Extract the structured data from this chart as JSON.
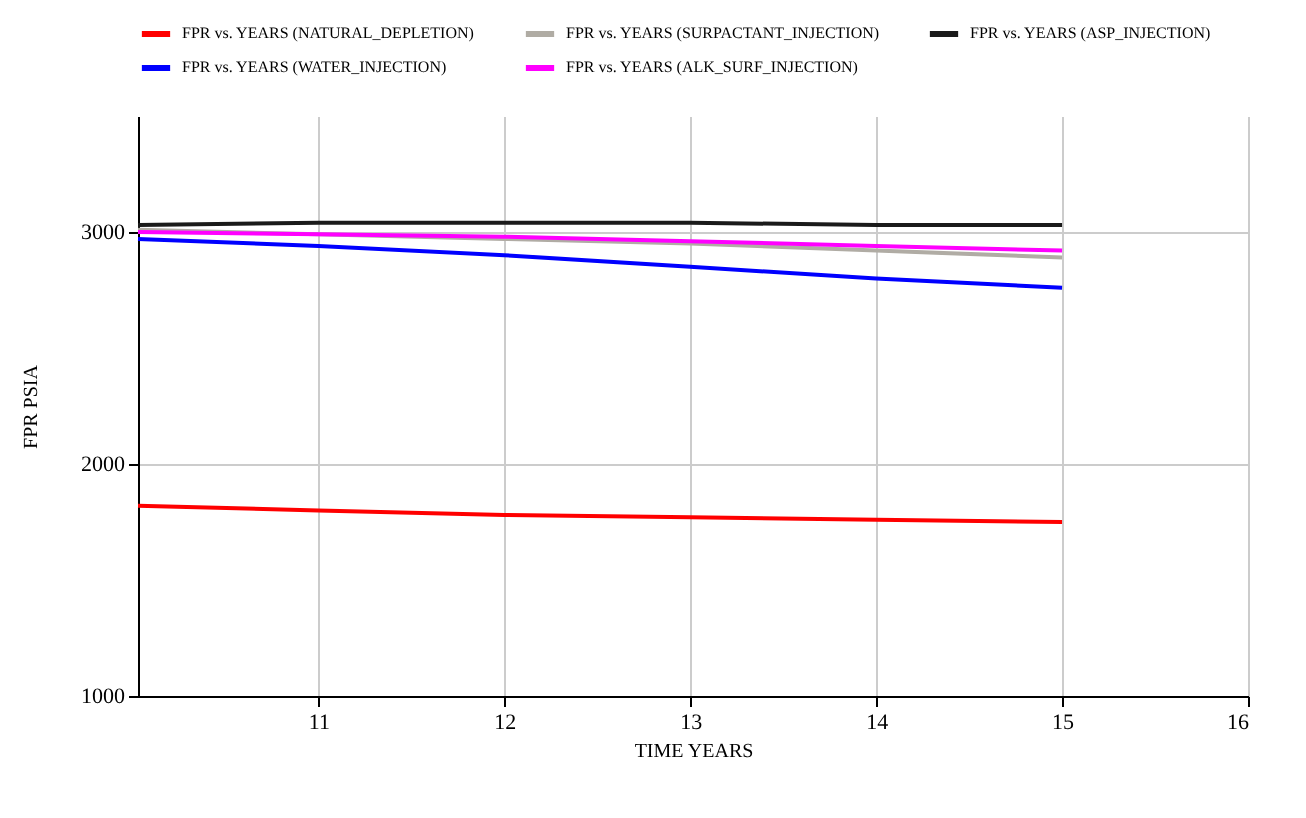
{
  "chart_data": {
    "type": "line",
    "xlabel": "TIME   YEARS",
    "ylabel": "FPR   PSIA",
    "x": [
      10.03,
      11,
      12,
      13,
      14,
      15
    ],
    "series": [
      {
        "name": "FPR vs. YEARS (NATURAL_DEPLETION)",
        "color": "#ff0000",
        "values": [
          1820,
          1800,
          1780,
          1770,
          1760,
          1750
        ]
      },
      {
        "name": "FPR vs. YEARS (SURPACTANT_INJECTION)",
        "color": "#b0aca4",
        "values": [
          3010,
          2990,
          2970,
          2950,
          2920,
          2890
        ]
      },
      {
        "name": "FPR vs. YEARS (ASP_INJECTION)",
        "color": "#1a1a1a",
        "values": [
          3030,
          3040,
          3040,
          3040,
          3030,
          3030
        ]
      },
      {
        "name": "FPR vs. YEARS (WATER_INJECTION)",
        "color": "#0000ff",
        "values": [
          2970,
          2940,
          2900,
          2850,
          2800,
          2760
        ]
      },
      {
        "name": "FPR vs. YEARS (ALK_SURF_INJECTION)",
        "color": "#ff00ff",
        "values": [
          3000,
          2990,
          2980,
          2960,
          2940,
          2920
        ]
      }
    ],
    "xlim": [
      10.03,
      16
    ],
    "xticks": [
      11,
      12,
      13,
      14,
      15,
      16
    ],
    "ylim": [
      1000,
      3500
    ],
    "yticks": [
      1000,
      2000,
      3000
    ],
    "grid": true,
    "legend": "top",
    "marker": "none",
    "line_style": "solid"
  }
}
